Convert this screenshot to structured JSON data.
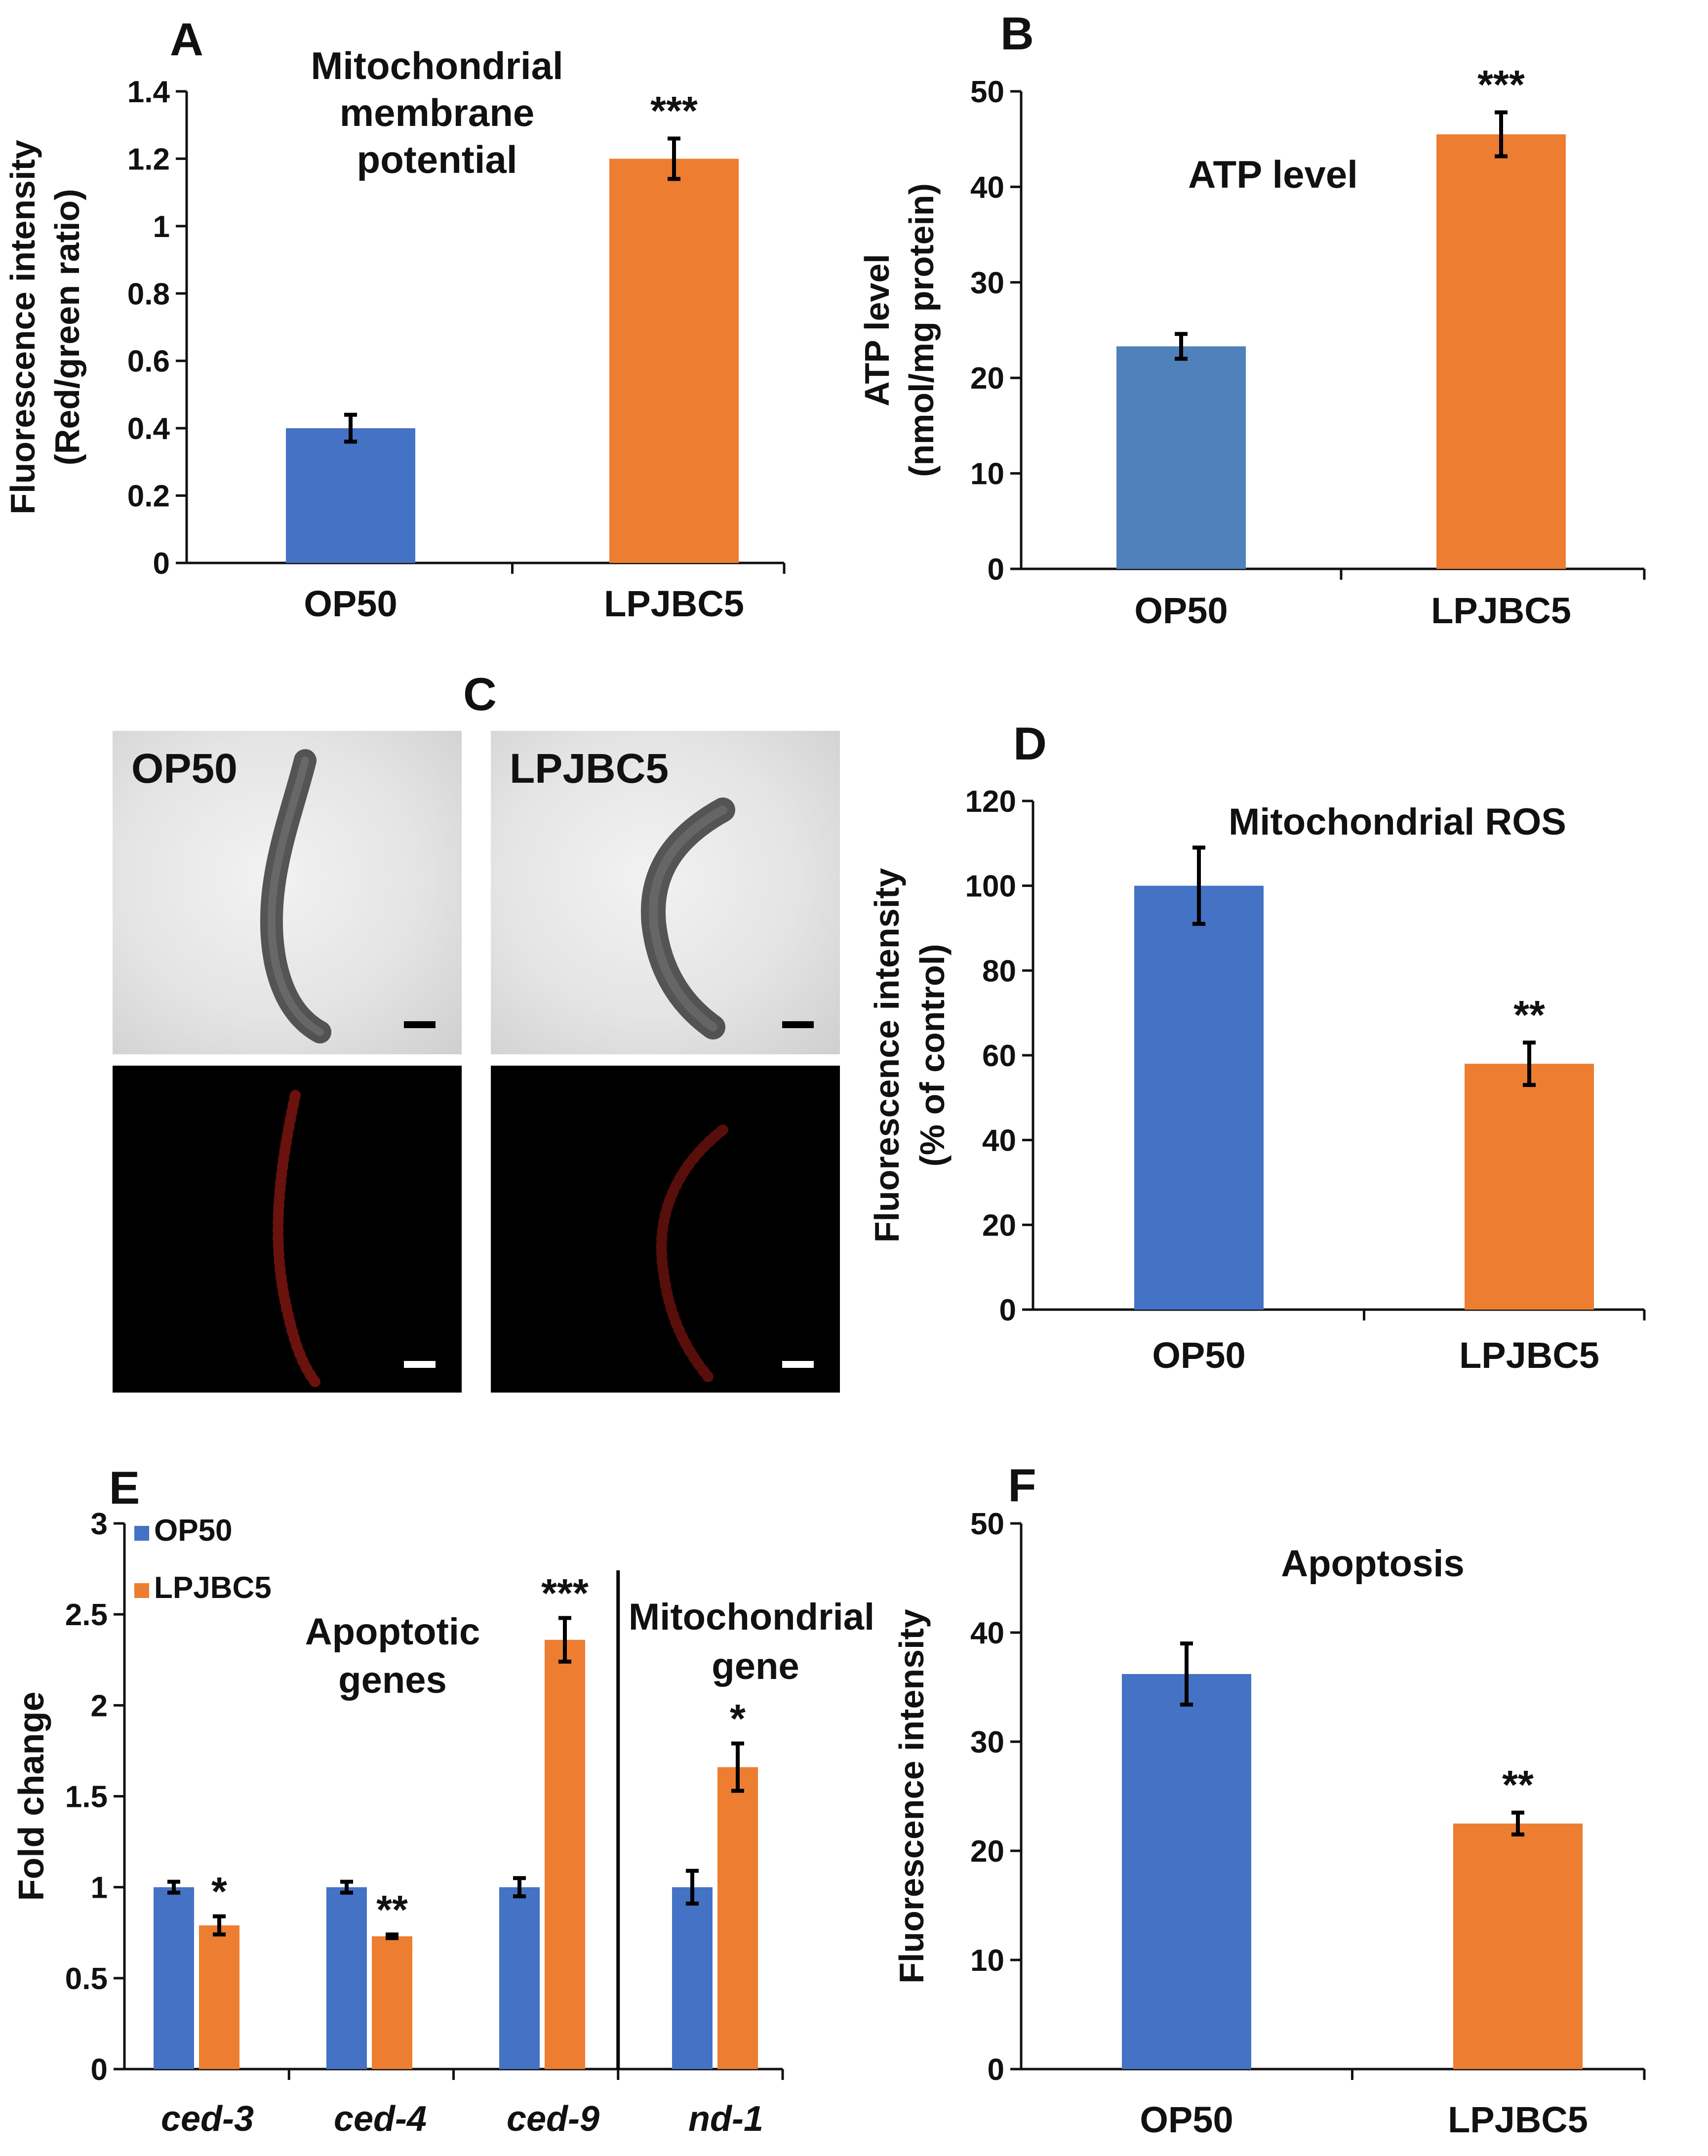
{
  "colors": {
    "op50": "#4472C4",
    "op50_b": "#4F81BD",
    "lpjbc5": "#ED7D31",
    "axis": "#111111"
  },
  "chart_data": [
    {
      "id": "A",
      "panel_letter": "A",
      "type": "bar",
      "title_lines": [
        "Mitochondrial",
        "membrane",
        "potential"
      ],
      "ylabel_lines": [
        "Fluorescence intensity",
        "(Red/green ratio)"
      ],
      "categories": [
        "OP50",
        "LPJBC5"
      ],
      "values": [
        0.4,
        1.2
      ],
      "errors": [
        0.04,
        0.06
      ],
      "significance": [
        "",
        "***"
      ],
      "ylim": [
        0,
        1.4
      ],
      "yticks": [
        0,
        0.2,
        0.4,
        0.6,
        0.8,
        1.0,
        1.2,
        1.4
      ],
      "ytick_labels": [
        "0",
        "0.2",
        "0.4",
        "0.6",
        "0.8",
        "1",
        "1.2",
        "1.4"
      ]
    },
    {
      "id": "B",
      "panel_letter": "B",
      "type": "bar",
      "title_lines": [
        "ATP level"
      ],
      "ylabel_lines": [
        "ATP level",
        "(nmol/mg protein)"
      ],
      "categories": [
        "OP50",
        "LPJBC5"
      ],
      "values": [
        23.3,
        45.5
      ],
      "errors": [
        1.3,
        2.3
      ],
      "significance": [
        "",
        "***"
      ],
      "ylim": [
        0,
        50
      ],
      "yticks": [
        0,
        10,
        20,
        30,
        40,
        50
      ],
      "ytick_labels": [
        "0",
        "10",
        "20",
        "30",
        "40",
        "50"
      ]
    },
    {
      "id": "D",
      "panel_letter": "D",
      "type": "bar",
      "title_lines": [
        "Mitochondrial ROS"
      ],
      "ylabel_lines": [
        "Fluorescence intensity",
        "(% of control)"
      ],
      "categories": [
        "OP50",
        "LPJBC5"
      ],
      "values": [
        100,
        58
      ],
      "errors": [
        9,
        5
      ],
      "significance": [
        "",
        "**"
      ],
      "ylim": [
        0,
        120
      ],
      "yticks": [
        0,
        20,
        40,
        60,
        80,
        100,
        120
      ],
      "ytick_labels": [
        "0",
        "20",
        "40",
        "60",
        "80",
        "100",
        "120"
      ]
    },
    {
      "id": "E",
      "panel_letter": "E",
      "type": "bar",
      "ylabel_lines": [
        "Fold change"
      ],
      "categories": [
        "ced-3",
        "ced-4",
        "ced-9",
        "nd-1"
      ],
      "series": [
        {
          "name": "OP50",
          "values": [
            1.0,
            1.0,
            1.0,
            1.0
          ],
          "errors": [
            0.03,
            0.03,
            0.05,
            0.09
          ]
        },
        {
          "name": "LPJBC5",
          "values": [
            0.79,
            0.73,
            2.36,
            1.66
          ],
          "errors": [
            0.05,
            0.01,
            0.12,
            0.13
          ]
        }
      ],
      "significance": [
        "*",
        "**",
        "***",
        "*"
      ],
      "group_labels": [
        [
          "Apoptotic",
          "genes"
        ],
        [
          "Mitochondrial",
          "gene"
        ]
      ],
      "ylim": [
        0,
        3
      ],
      "yticks": [
        0,
        0.5,
        1,
        1.5,
        2,
        2.5,
        3
      ],
      "ytick_labels": [
        "0",
        "0.5",
        "1",
        "1.5",
        "2",
        "2.5",
        "3"
      ]
    },
    {
      "id": "F",
      "panel_letter": "F",
      "type": "bar",
      "title_lines": [
        "Apoptosis"
      ],
      "ylabel_lines": [
        "Fluorescence intensity"
      ],
      "categories": [
        "OP50",
        "LPJBC5"
      ],
      "values": [
        36.2,
        22.5
      ],
      "errors": [
        2.8,
        1.0
      ],
      "significance": [
        "",
        "**"
      ],
      "ylim": [
        0,
        50
      ],
      "yticks": [
        0,
        10,
        20,
        30,
        40,
        50
      ],
      "ytick_labels": [
        "0",
        "10",
        "20",
        "30",
        "40",
        "50"
      ]
    }
  ],
  "panel_c": {
    "letter": "C",
    "labels": [
      "OP50",
      "LPJBC5"
    ]
  }
}
